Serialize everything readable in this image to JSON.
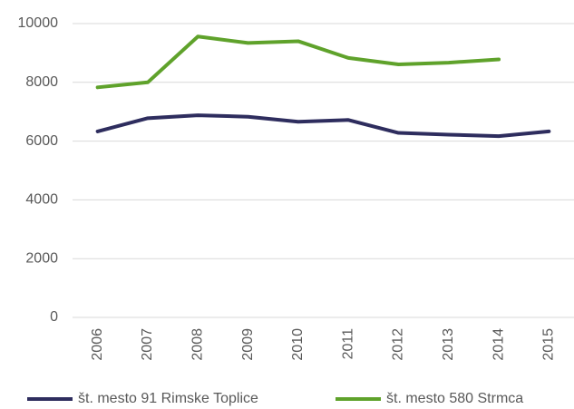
{
  "chart_data": {
    "type": "line",
    "categories": [
      "2006",
      "2007",
      "2008",
      "2009",
      "2010",
      "2011",
      "2012",
      "2013",
      "2014",
      "2015"
    ],
    "series": [
      {
        "name": "št. mesto 91 Rimske Toplice",
        "color": "#2e2d5e",
        "values": [
          6330,
          6780,
          6880,
          6830,
          6660,
          6720,
          6280,
          6220,
          6170,
          6330
        ]
      },
      {
        "name": "št. mesto 580 Strmca",
        "color": "#5fa22b",
        "values": [
          7830,
          8000,
          9560,
          9340,
          9400,
          8830,
          8610,
          8670,
          8780,
          null
        ]
      }
    ],
    "ylim": [
      0,
      10000
    ],
    "yticks": [
      0,
      2000,
      4000,
      6000,
      8000,
      10000
    ],
    "grid": true,
    "legend": "bottom"
  }
}
